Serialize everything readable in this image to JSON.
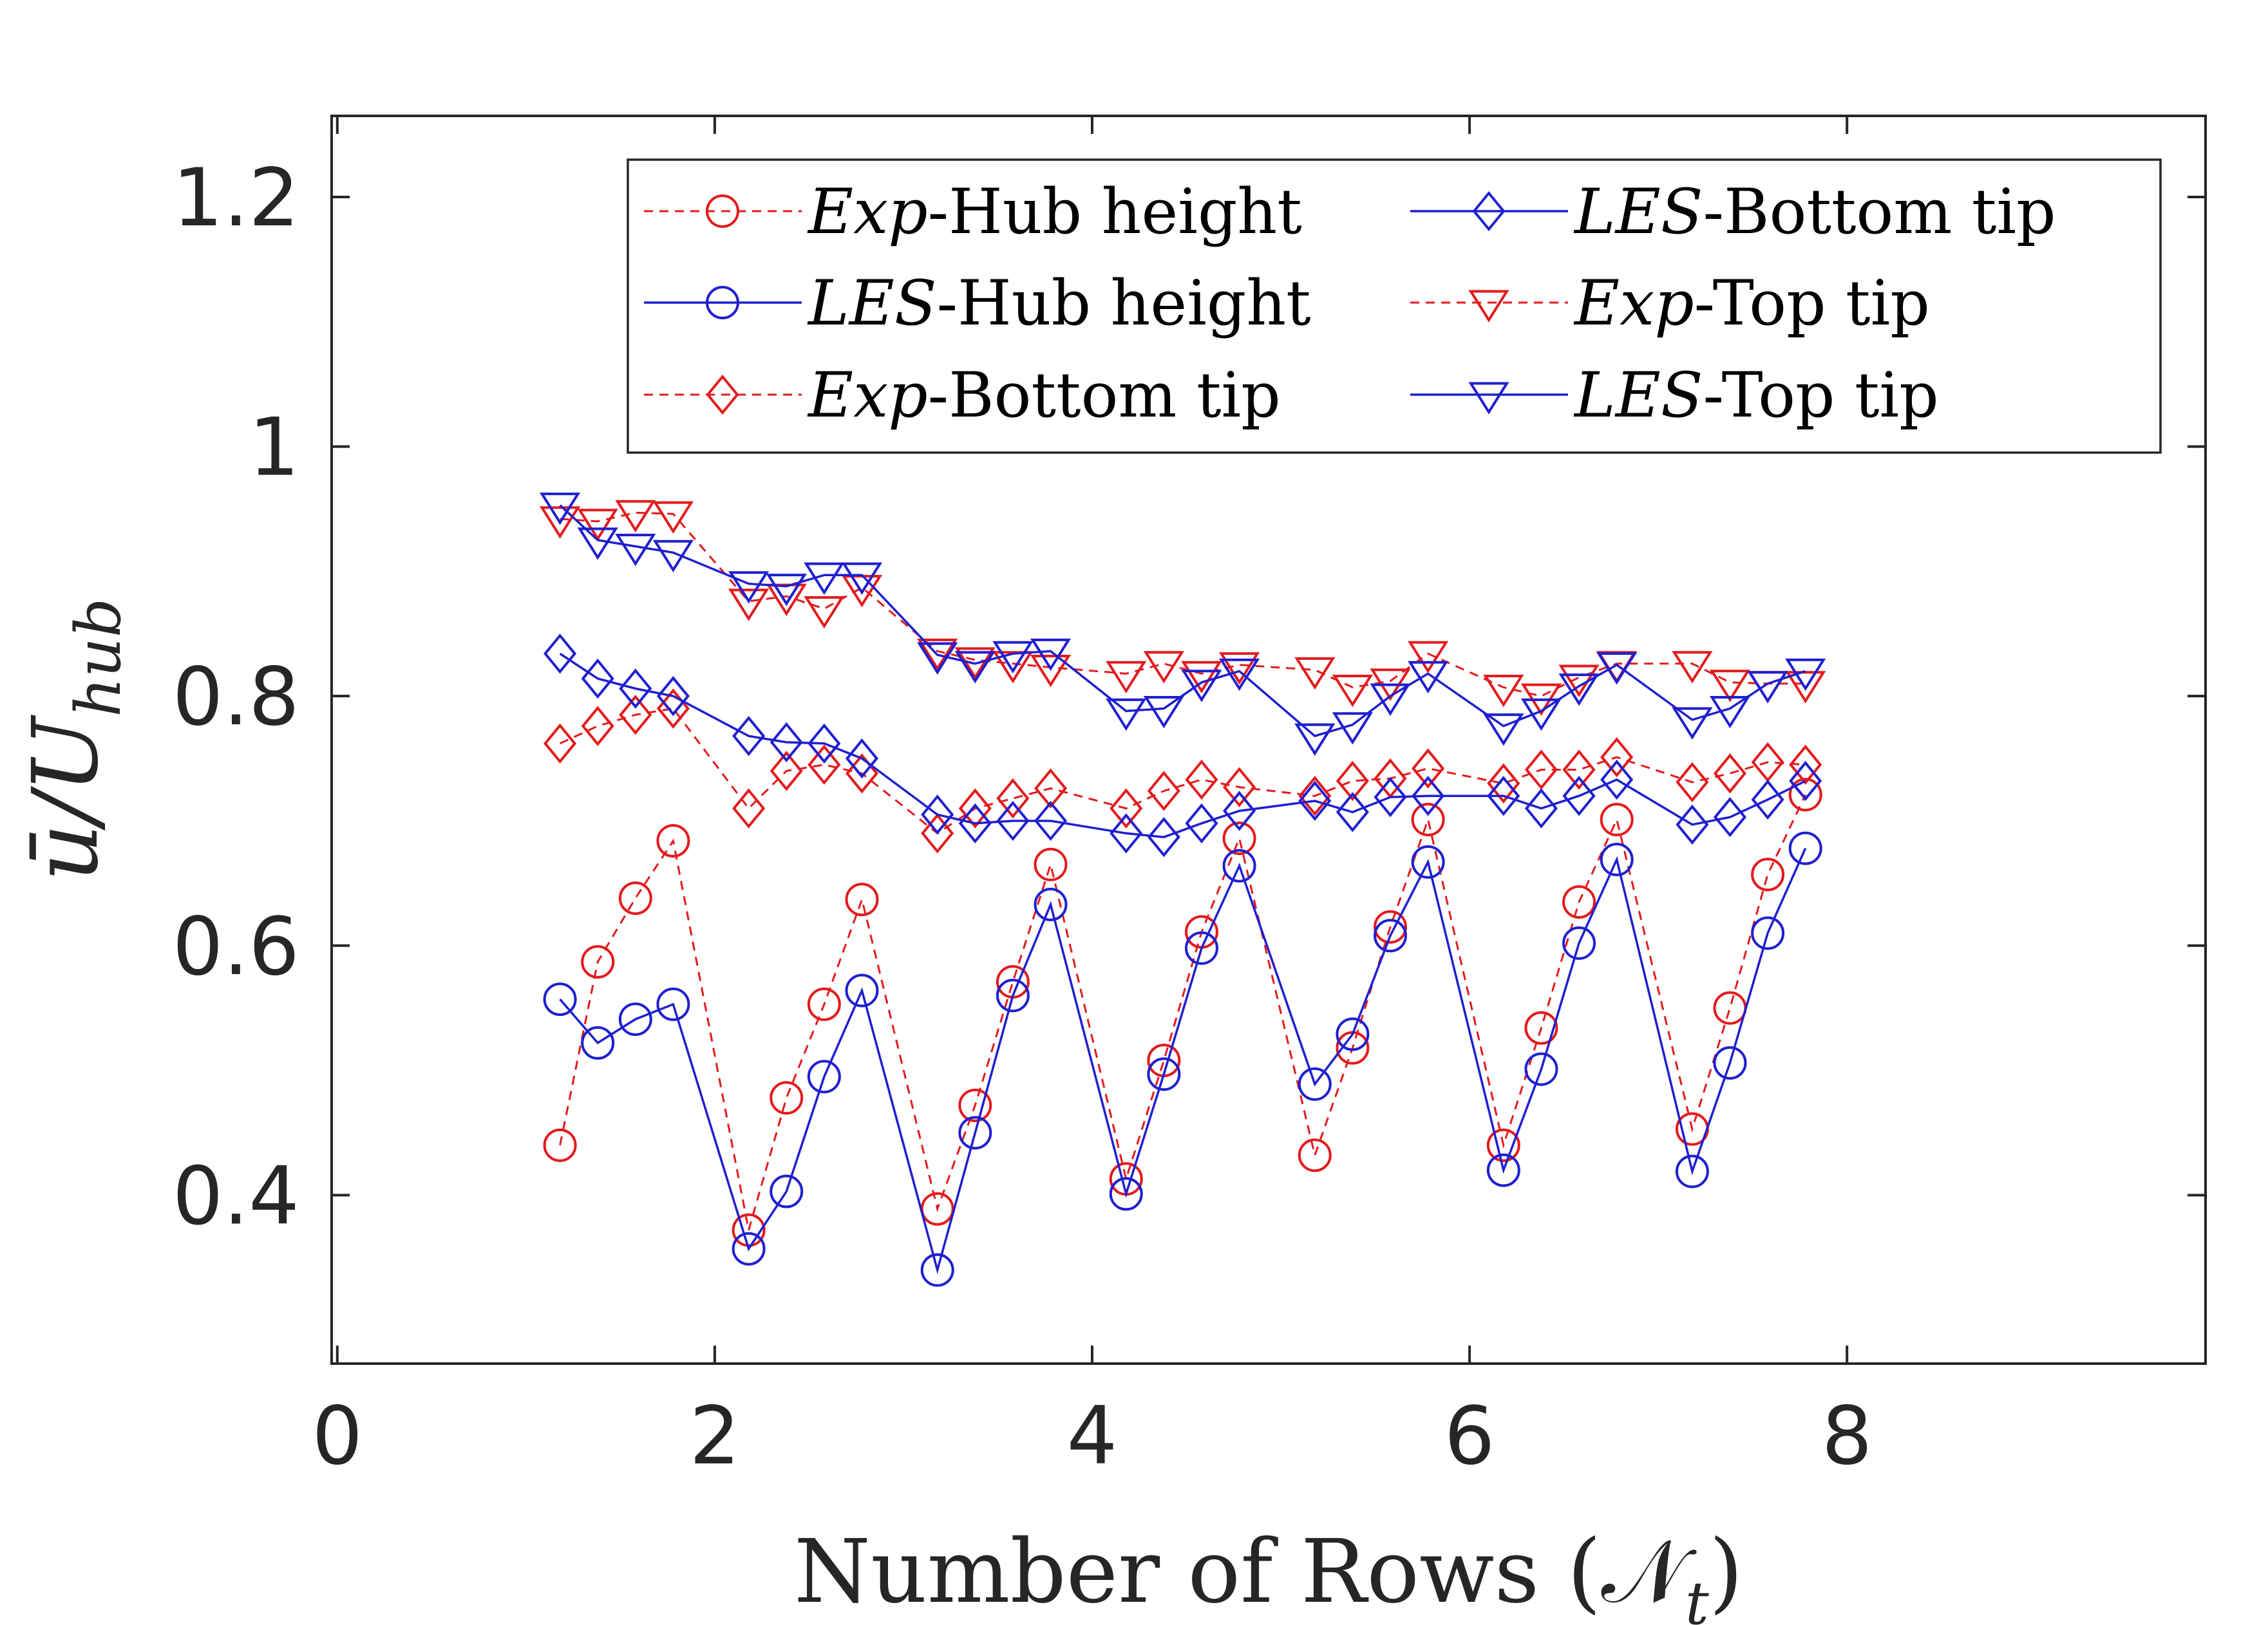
{
  "chart_data": {
    "type": "line",
    "title": "",
    "xlabel": "Number of Rows (𝒩",
    "xlabel_sub": "t",
    "xlabel_close": ")",
    "ylabel": "ū/U",
    "ylabel_sub": "hub",
    "xlim": [
      -0.03,
      9.9
    ],
    "ylim": [
      0.265,
      1.265
    ],
    "xticks": [
      0,
      2,
      4,
      6,
      8
    ],
    "xtick_labels": [
      "0",
      "2",
      "4",
      "6",
      "8"
    ],
    "yticks": [
      0.4,
      0.6,
      0.8,
      1.0,
      1.2
    ],
    "ytick_labels": [
      "0.4",
      "0.6",
      "0.8",
      "1",
      "1.2"
    ],
    "grid": false,
    "legend_position": "top-right",
    "x": [
      1.18,
      1.38,
      1.58,
      1.78,
      2.18,
      2.38,
      2.58,
      2.78,
      3.18,
      3.38,
      3.58,
      3.78,
      4.18,
      4.38,
      4.58,
      4.78,
      5.18,
      5.38,
      5.58,
      5.78,
      6.18,
      6.38,
      6.58,
      6.78,
      7.18,
      7.38,
      7.58,
      7.78
    ],
    "series": [
      {
        "name": "Exp-Hub height",
        "name_italic": "Exp",
        "name_rest": "-Hub height",
        "color": "#e31a1c",
        "dashed": true,
        "marker": "circle",
        "values": [
          0.44,
          0.587,
          0.638,
          0.684,
          0.372,
          0.478,
          0.553,
          0.637,
          0.389,
          0.472,
          0.571,
          0.665,
          0.413,
          0.508,
          0.611,
          0.686,
          0.432,
          0.518,
          0.615,
          0.701,
          0.44,
          0.534,
          0.635,
          0.701,
          0.453,
          0.55,
          0.657,
          0.721
        ]
      },
      {
        "name": "LES-Hub height",
        "name_italic": "LES",
        "name_rest": "-Hub height",
        "color": "#1f1fd0",
        "dashed": false,
        "marker": "circle",
        "values": [
          0.557,
          0.522,
          0.541,
          0.553,
          0.357,
          0.403,
          0.495,
          0.564,
          0.34,
          0.45,
          0.56,
          0.633,
          0.401,
          0.497,
          0.598,
          0.664,
          0.489,
          0.529,
          0.608,
          0.667,
          0.42,
          0.501,
          0.602,
          0.669,
          0.419,
          0.506,
          0.61,
          0.678
        ]
      },
      {
        "name": "Exp-Bottom tip",
        "name_italic": "Exp",
        "name_rest": "-Bottom tip",
        "color": "#e31a1c",
        "dashed": true,
        "marker": "diamond",
        "values": [
          0.762,
          0.776,
          0.785,
          0.79,
          0.71,
          0.74,
          0.745,
          0.738,
          0.69,
          0.71,
          0.718,
          0.726,
          0.71,
          0.724,
          0.733,
          0.727,
          0.72,
          0.732,
          0.734,
          0.742,
          0.73,
          0.741,
          0.741,
          0.751,
          0.731,
          0.738,
          0.747,
          0.745
        ]
      },
      {
        "name": "LES-Bottom tip",
        "name_italic": "LES",
        "name_rest": "-Bottom tip",
        "color": "#1f1fd0",
        "dashed": false,
        "marker": "diamond",
        "values": [
          0.834,
          0.814,
          0.806,
          0.8,
          0.768,
          0.763,
          0.762,
          0.75,
          0.705,
          0.698,
          0.7,
          0.7,
          0.69,
          0.687,
          0.698,
          0.708,
          0.716,
          0.707,
          0.719,
          0.72,
          0.72,
          0.71,
          0.72,
          0.733,
          0.697,
          0.703,
          0.717,
          0.732
        ]
      },
      {
        "name": "Exp-Top tip",
        "name_italic": "Exp",
        "name_rest": "-Top tip",
        "color": "#e31a1c",
        "dashed": true,
        "marker": "triangle-down",
        "values": [
          0.942,
          0.94,
          0.947,
          0.946,
          0.876,
          0.88,
          0.87,
          0.887,
          0.836,
          0.829,
          0.826,
          0.823,
          0.818,
          0.826,
          0.818,
          0.825,
          0.821,
          0.807,
          0.812,
          0.834,
          0.807,
          0.8,
          0.815,
          0.826,
          0.826,
          0.811,
          0.81,
          0.81
        ]
      },
      {
        "name": "LES-Top tip",
        "name_italic": "LES",
        "name_rest": "-Top tip",
        "color": "#1f1fd0",
        "dashed": false,
        "marker": "triangle-down",
        "values": [
          0.953,
          0.925,
          0.92,
          0.915,
          0.89,
          0.888,
          0.897,
          0.897,
          0.833,
          0.826,
          0.834,
          0.836,
          0.788,
          0.79,
          0.811,
          0.82,
          0.768,
          0.777,
          0.8,
          0.818,
          0.776,
          0.788,
          0.808,
          0.825,
          0.781,
          0.79,
          0.81,
          0.82
        ]
      }
    ]
  }
}
